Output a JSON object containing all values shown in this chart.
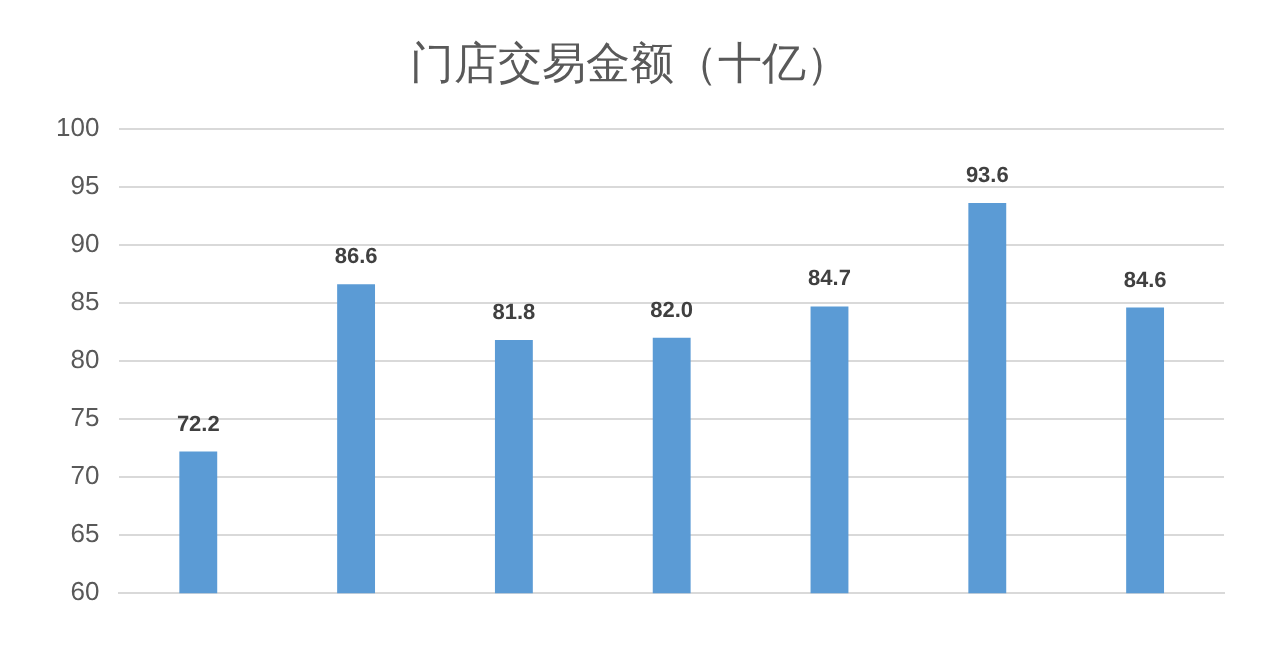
{
  "chart_data": {
    "type": "bar",
    "title": "门店交易金额（十亿）",
    "categories": [
      null,
      null,
      null,
      null,
      null,
      null,
      null
    ],
    "values": [
      72.2,
      86.6,
      81.8,
      82.0,
      84.7,
      93.6,
      84.6
    ],
    "value_labels": [
      "72.2",
      "86.6",
      "81.8",
      "82.0",
      "84.7",
      "93.6",
      "84.6"
    ],
    "color": "#5b9bd5",
    "ylim": [
      60,
      100
    ],
    "yticks": [
      60,
      65,
      70,
      75,
      80,
      85,
      90,
      95,
      100
    ],
    "grid": "y",
    "legend": false
  }
}
